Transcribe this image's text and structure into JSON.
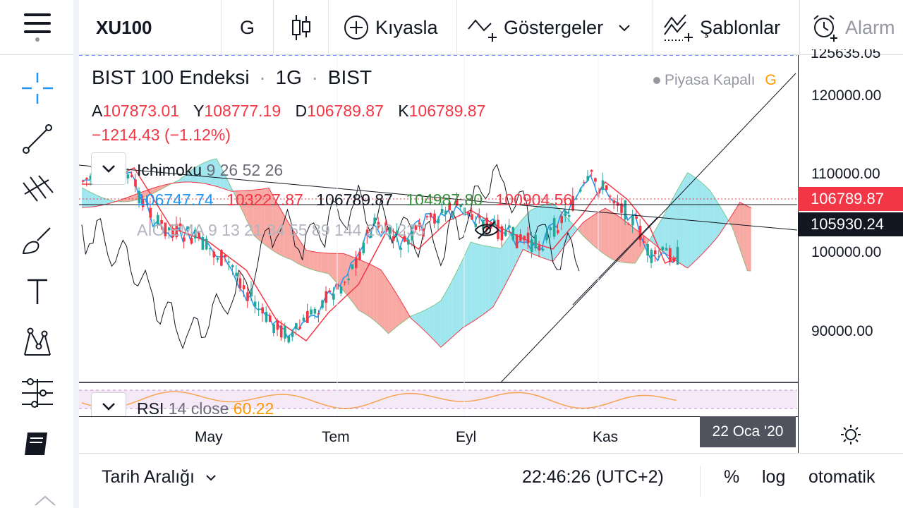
{
  "toolbar": {
    "symbol": "XU100",
    "interval": "G",
    "compare_label": "Kıyasla",
    "indicators_label": "Göstergeler",
    "templates_label": "Şablonlar",
    "alarm_label": "Alarm"
  },
  "legend": {
    "title": "BIST 100 Endeksi",
    "sep": "·",
    "interval": "1G",
    "exchange": "BIST",
    "market_status": "Piyasa Kapalı",
    "market_badge": "G",
    "open_label": "A",
    "open": "107873.01",
    "high_label": "Y",
    "high": "108777.19",
    "low_label": "D",
    "low": "106789.87",
    "close_label": "K",
    "close": "106789.87",
    "change": "−1214.43 (−1.12%)"
  },
  "ichimoku": {
    "name": "Ichimoku",
    "params": "9 26 52 26",
    "values": [
      "106747.74",
      "103227.87",
      "106789.87",
      "104987.80",
      "100904.56"
    ],
    "colors": [
      "#2196f3",
      "#f23645",
      "#131722",
      "#388e3c",
      "#f23645"
    ]
  },
  "ema": {
    "name": "AIO EMA",
    "params": "9 13 21 34 55 89 144 200 233"
  },
  "rsi": {
    "name": "RSI",
    "params": "14 close",
    "value": "60.22"
  },
  "price_axis": {
    "top_cut": "125635.05",
    "ticks": [
      "120000.00",
      "110000.00",
      "100000.00",
      "90000.00"
    ],
    "last_price": "106789.87",
    "cursor_price": "105930.24",
    "colors": {
      "last": "#f23645",
      "cursor": "#131722"
    }
  },
  "time_axis": {
    "ticks": [
      "May",
      "Tem",
      "Eyl",
      "Kas"
    ],
    "cursor_date": "22 Oca '20"
  },
  "bottom": {
    "date_range_label": "Tarih Aralığı",
    "clock": "22:46:26 (UTC+2)",
    "percent_label": "%",
    "log_label": "log",
    "auto_label": "otomatik"
  },
  "left_tools": [
    "crosshair-icon",
    "trendline-icon",
    "pitchfork-icon",
    "brush-icon",
    "text-icon",
    "pattern-icon",
    "measure-icon",
    "ideas-icon"
  ],
  "colors": {
    "up": "#26a69a",
    "down": "#f23645",
    "cloud_up": "#80deea",
    "cloud_down": "#f58c85",
    "accent": "#2196f3"
  }
}
